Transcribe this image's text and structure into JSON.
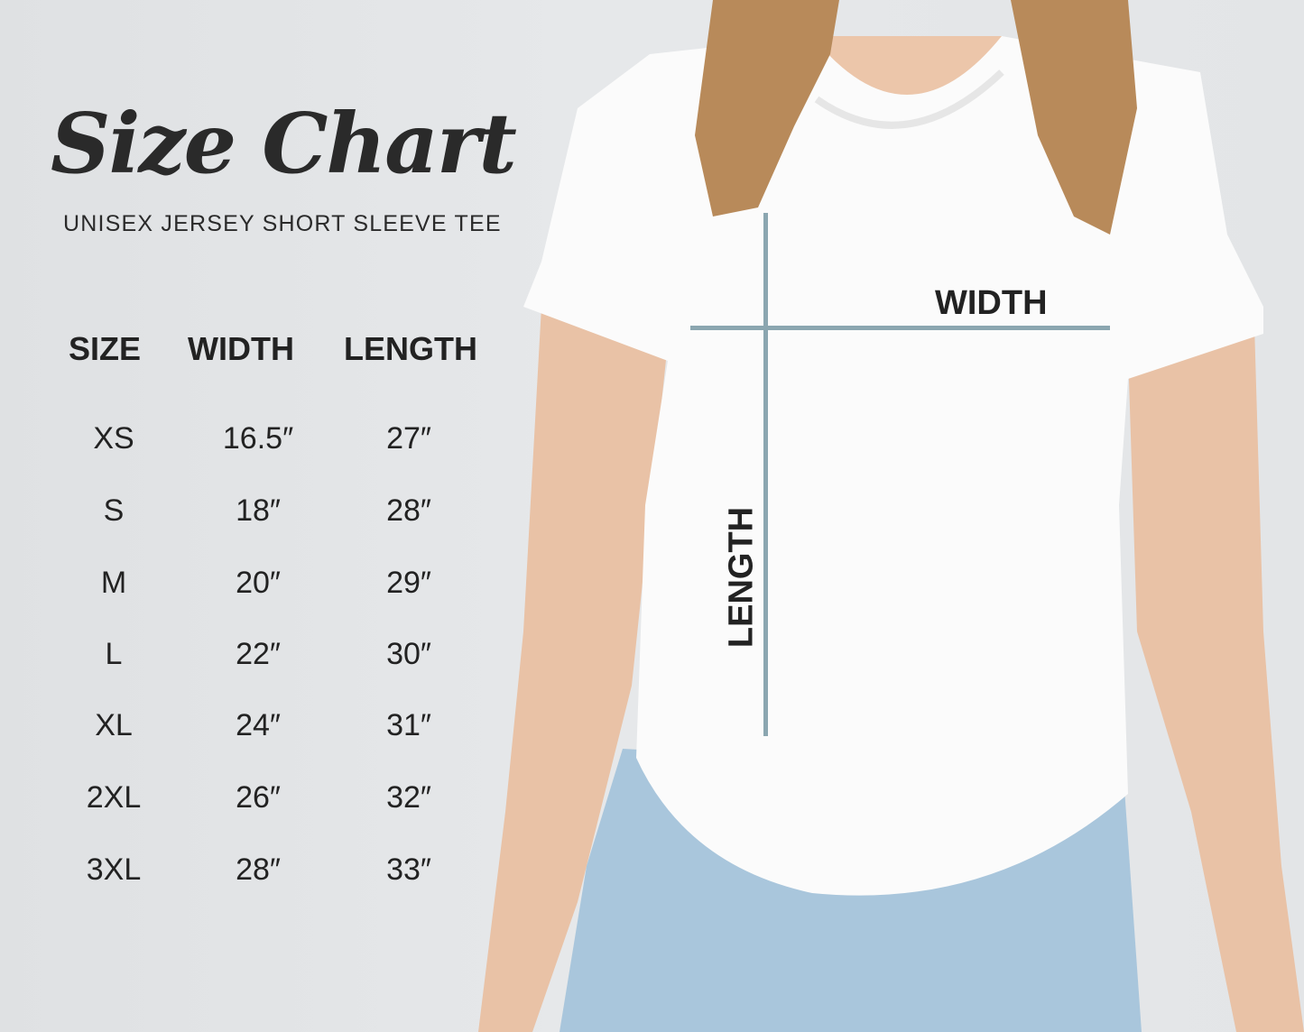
{
  "title": "Size Chart",
  "subtitle": "UNISEX JERSEY SHORT SLEEVE TEE",
  "table": {
    "headers": [
      "SIZE",
      "WIDTH",
      "LENGTH"
    ],
    "rows": [
      [
        "XS",
        "16.5″",
        "27″"
      ],
      [
        "S",
        "18″",
        "28″"
      ],
      [
        "M",
        "20″",
        "29″"
      ],
      [
        "L",
        "22″",
        "30″"
      ],
      [
        "XL",
        "24″",
        "31″"
      ],
      [
        "2XL",
        "26″",
        "32″"
      ],
      [
        "3XL",
        "28″",
        "33″"
      ]
    ]
  },
  "diagram": {
    "width_label": "WIDTH",
    "length_label": "LENGTH",
    "line_color": "#8ba6b0"
  }
}
